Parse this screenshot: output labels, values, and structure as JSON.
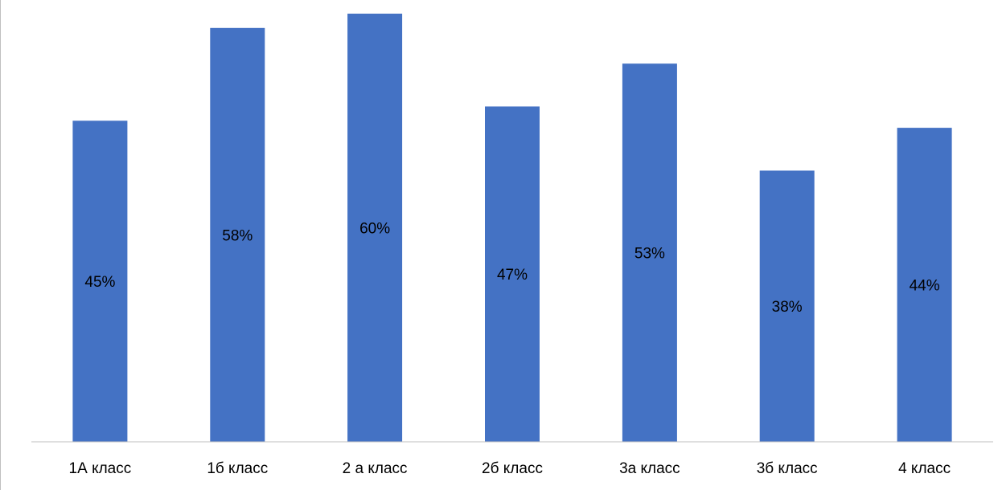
{
  "chart_data": {
    "type": "bar",
    "title": "",
    "xlabel": "",
    "ylabel": "",
    "categories": [
      "1А класс",
      "1б класс",
      "2 а класс",
      "2б класс",
      "3а класс",
      "3б класс",
      "4 класс"
    ],
    "values": [
      45,
      58,
      60,
      47,
      53,
      38,
      44
    ],
    "data_labels": [
      "45%",
      "58%",
      "60%",
      "47%",
      "53%",
      "38%",
      "44%"
    ],
    "unit": "%",
    "ylim": [
      0,
      60
    ],
    "grid": false,
    "legend": "none",
    "colors": {
      "bar": "#4472C4",
      "axis": "#bfbfbf",
      "text": "#000000"
    }
  }
}
